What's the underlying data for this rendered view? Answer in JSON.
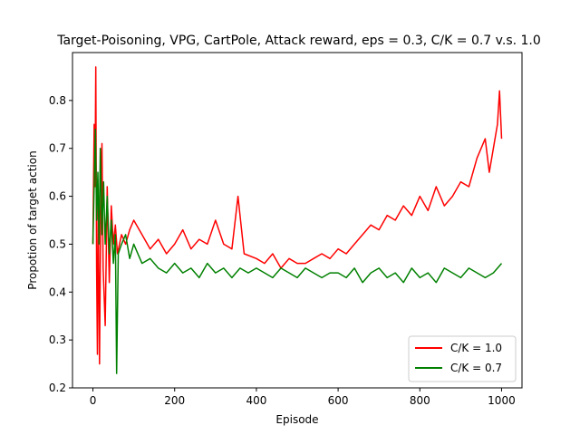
{
  "chart_data": {
    "type": "line",
    "title": "Target-Poisoning, VPG, CartPole, Attack reward, eps = 0.3, C/K = 0.7 v.s. 1.0",
    "xlabel": "Episode",
    "ylabel": "Propotion of target action",
    "xlim": [
      -50,
      1050
    ],
    "ylim": [
      0.2,
      0.9
    ],
    "xticks": [
      0,
      200,
      400,
      600,
      800,
      1000
    ],
    "yticks": [
      0.2,
      0.3,
      0.4,
      0.5,
      0.6,
      0.7,
      0.8
    ],
    "grid": false,
    "legend_position": "lower-right",
    "series": [
      {
        "name": "C/K = 1.0",
        "color": "#ff0000",
        "x": [
          0,
          3,
          5,
          7,
          9,
          11,
          13,
          16,
          19,
          22,
          25,
          30,
          35,
          40,
          45,
          50,
          55,
          60,
          70,
          80,
          90,
          100,
          120,
          140,
          160,
          180,
          200,
          220,
          240,
          260,
          280,
          300,
          320,
          340,
          355,
          370,
          400,
          420,
          440,
          460,
          480,
          500,
          520,
          540,
          560,
          580,
          600,
          620,
          640,
          660,
          680,
          700,
          720,
          740,
          760,
          780,
          800,
          820,
          840,
          860,
          880,
          900,
          920,
          940,
          960,
          970,
          980,
          990,
          995,
          1000
        ],
        "values": [
          0.5,
          0.75,
          0.62,
          0.87,
          0.45,
          0.27,
          0.6,
          0.25,
          0.55,
          0.71,
          0.45,
          0.33,
          0.62,
          0.42,
          0.58,
          0.5,
          0.54,
          0.48,
          0.52,
          0.5,
          0.53,
          0.55,
          0.52,
          0.49,
          0.51,
          0.48,
          0.5,
          0.53,
          0.49,
          0.51,
          0.5,
          0.55,
          0.5,
          0.49,
          0.6,
          0.48,
          0.47,
          0.46,
          0.48,
          0.45,
          0.47,
          0.46,
          0.46,
          0.47,
          0.48,
          0.47,
          0.49,
          0.48,
          0.5,
          0.52,
          0.54,
          0.53,
          0.56,
          0.55,
          0.58,
          0.56,
          0.6,
          0.57,
          0.62,
          0.58,
          0.6,
          0.63,
          0.62,
          0.68,
          0.72,
          0.65,
          0.7,
          0.75,
          0.82,
          0.72
        ]
      },
      {
        "name": "C/K = 0.7",
        "color": "#008000",
        "x": [
          0,
          3,
          6,
          9,
          12,
          15,
          18,
          22,
          26,
          30,
          35,
          40,
          45,
          50,
          55,
          58,
          62,
          70,
          80,
          90,
          100,
          120,
          140,
          160,
          180,
          200,
          220,
          240,
          260,
          280,
          300,
          320,
          340,
          360,
          380,
          400,
          420,
          440,
          460,
          480,
          500,
          520,
          540,
          560,
          580,
          600,
          620,
          640,
          660,
          680,
          700,
          720,
          740,
          760,
          780,
          800,
          820,
          840,
          860,
          880,
          900,
          920,
          940,
          960,
          980,
          1000
        ],
        "values": [
          0.5,
          0.62,
          0.74,
          0.55,
          0.65,
          0.5,
          0.7,
          0.52,
          0.63,
          0.5,
          0.6,
          0.48,
          0.55,
          0.46,
          0.52,
          0.23,
          0.48,
          0.5,
          0.52,
          0.47,
          0.5,
          0.46,
          0.47,
          0.45,
          0.44,
          0.46,
          0.44,
          0.45,
          0.43,
          0.46,
          0.44,
          0.45,
          0.43,
          0.45,
          0.44,
          0.45,
          0.44,
          0.43,
          0.45,
          0.44,
          0.43,
          0.45,
          0.44,
          0.43,
          0.44,
          0.44,
          0.43,
          0.45,
          0.42,
          0.44,
          0.45,
          0.43,
          0.44,
          0.42,
          0.45,
          0.43,
          0.44,
          0.42,
          0.45,
          0.44,
          0.43,
          0.45,
          0.44,
          0.43,
          0.44,
          0.46
        ]
      }
    ]
  }
}
